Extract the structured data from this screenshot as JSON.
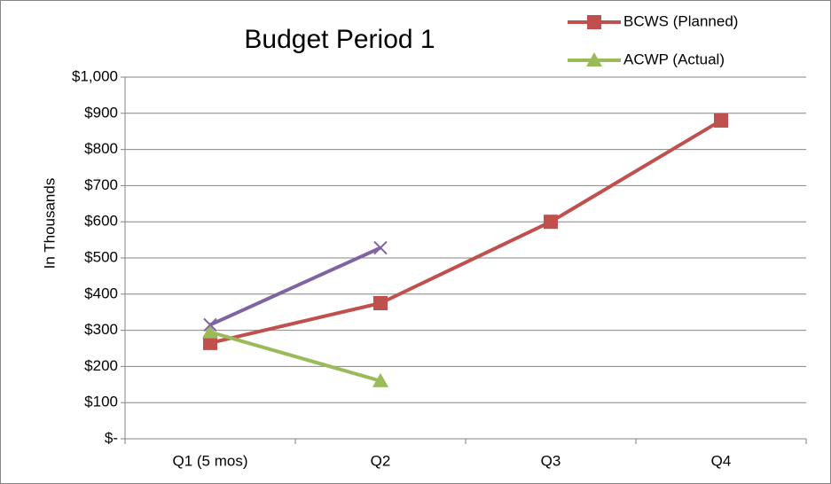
{
  "chart_data": {
    "type": "line",
    "title": "Budget Period 1",
    "y_label": "In Thousands",
    "categories": [
      "Q1 (5 mos)",
      "Q2",
      "Q3",
      "Q4"
    ],
    "series": [
      {
        "name": "BCWS (Planned)",
        "color": "#c0504d",
        "marker": "square",
        "values": [
          265,
          375,
          600,
          880
        ]
      },
      {
        "name": "ACWP (Actual)",
        "color": "#9bbb59",
        "marker": "triangle",
        "values": [
          295,
          160,
          null,
          null
        ]
      },
      {
        "color": "#8064a2",
        "marker": "x",
        "values": [
          315,
          528,
          null,
          null
        ]
      }
    ],
    "ylim": [
      0,
      1000
    ],
    "yticks": [
      {
        "value": 0,
        "label": "$-"
      },
      {
        "value": 100,
        "label": "$100"
      },
      {
        "value": 200,
        "label": "$200"
      },
      {
        "value": 300,
        "label": "$300"
      },
      {
        "value": 400,
        "label": "$400"
      },
      {
        "value": 500,
        "label": "$500"
      },
      {
        "value": 600,
        "label": "$600"
      },
      {
        "value": 700,
        "label": "$700"
      },
      {
        "value": 800,
        "label": "$800"
      },
      {
        "value": 900,
        "label": "$900"
      },
      {
        "value": 1000,
        "label": "$1,000"
      }
    ],
    "grid": true,
    "legend": "top-right"
  }
}
